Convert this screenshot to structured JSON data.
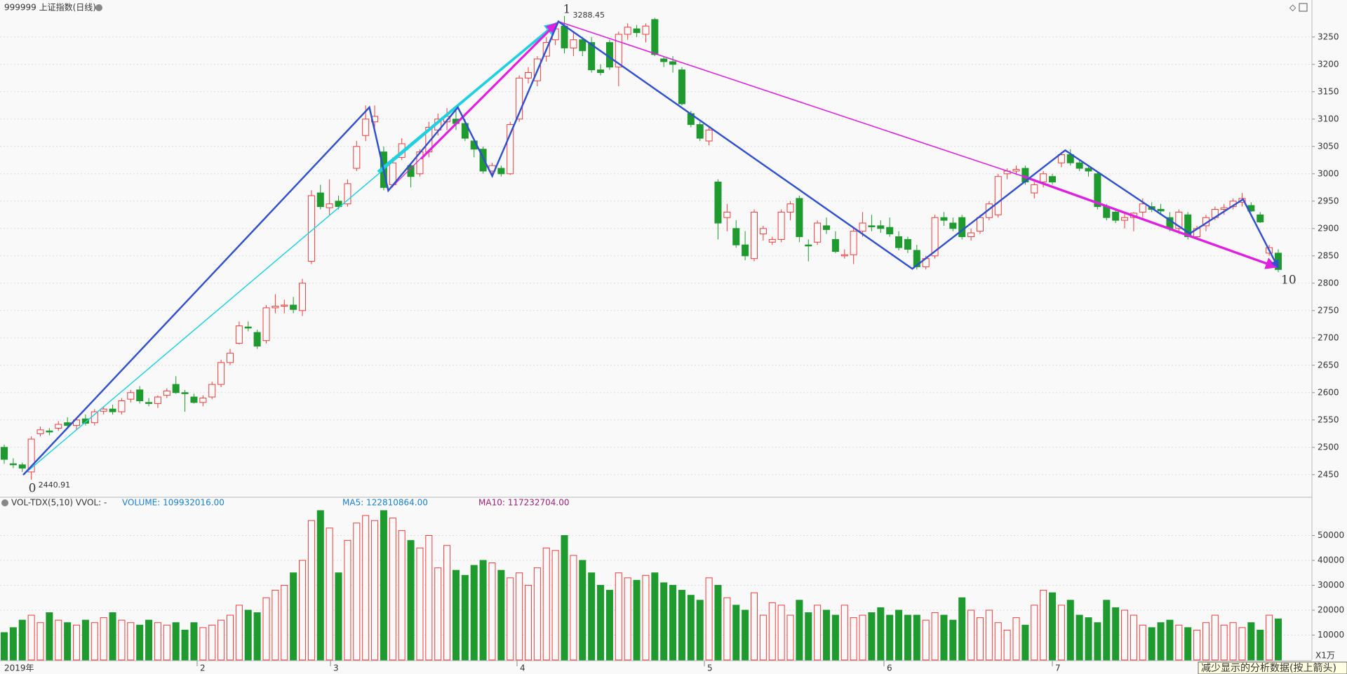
{
  "chart_data": {
    "type": "candlestick",
    "title": "999999 上证指数(日线)",
    "ylim": [
      2410,
      3310
    ],
    "yticks": [
      2450,
      2500,
      2550,
      2600,
      2650,
      2700,
      2750,
      2800,
      2850,
      2900,
      2950,
      3000,
      3050,
      3100,
      3150,
      3200,
      3250
    ],
    "up_color": "#f03c3c",
    "down_color": "#1f9a2e",
    "grid": true,
    "wave_labels": [
      "0",
      "1",
      "10"
    ],
    "month_labels": [
      "2019年",
      "2",
      "3",
      "4",
      "5",
      "6",
      "7"
    ],
    "hint": "减少显示的分析数据(按上箭头)",
    "candles": [
      [
        2500,
        2505,
        2470,
        2478
      ],
      [
        2470,
        2480,
        2462,
        2468
      ],
      [
        2468,
        2472,
        2455,
        2462
      ],
      [
        2455,
        2520,
        2440.91,
        2515
      ],
      [
        2525,
        2538,
        2520,
        2532
      ],
      [
        2530,
        2535,
        2522,
        2528
      ],
      [
        2535,
        2548,
        2530,
        2542
      ],
      [
        2545,
        2555,
        2535,
        2540
      ],
      [
        2540,
        2555,
        2532,
        2550
      ],
      [
        2552,
        2560,
        2540,
        2544
      ],
      [
        2545,
        2570,
        2540,
        2565
      ],
      [
        2566,
        2575,
        2560,
        2570
      ],
      [
        2570,
        2578,
        2560,
        2565
      ],
      [
        2565,
        2590,
        2560,
        2585
      ],
      [
        2588,
        2605,
        2582,
        2600
      ],
      [
        2605,
        2612,
        2580,
        2585
      ],
      [
        2582,
        2590,
        2575,
        2580
      ],
      [
        2580,
        2595,
        2572,
        2592
      ],
      [
        2595,
        2608,
        2590,
        2603
      ],
      [
        2615,
        2630,
        2598,
        2600
      ],
      [
        2600,
        2605,
        2565,
        2598
      ],
      [
        2592,
        2598,
        2580,
        2582
      ],
      [
        2582,
        2595,
        2575,
        2590
      ],
      [
        2592,
        2620,
        2588,
        2615
      ],
      [
        2615,
        2660,
        2610,
        2655
      ],
      [
        2655,
        2680,
        2650,
        2672
      ],
      [
        2690,
        2730,
        2688,
        2722
      ],
      [
        2720,
        2730,
        2712,
        2718
      ],
      [
        2710,
        2715,
        2680,
        2685
      ],
      [
        2695,
        2760,
        2690,
        2755
      ],
      [
        2755,
        2780,
        2745,
        2758
      ],
      [
        2758,
        2770,
        2745,
        2760
      ],
      [
        2760,
        2775,
        2745,
        2752
      ],
      [
        2750,
        2808,
        2740,
        2800
      ],
      [
        2840,
        2970,
        2835,
        2960
      ],
      [
        2965,
        2980,
        2935,
        2940
      ],
      [
        2938,
        2990,
        2925,
        2945
      ],
      [
        2950,
        2960,
        2935,
        2940
      ],
      [
        2945,
        2990,
        2940,
        2982
      ],
      [
        3010,
        3060,
        3005,
        3050
      ],
      [
        3070,
        3125,
        3060,
        3100
      ],
      [
        3095,
        3125,
        3085,
        3105
      ],
      [
        3040,
        3050,
        2970,
        2975
      ],
      [
        2980,
        3030,
        2975,
        3020
      ],
      [
        3030,
        3065,
        3025,
        3055
      ],
      [
        3015,
        3020,
        2975,
        2995
      ],
      [
        3000,
        3045,
        2995,
        3040
      ],
      [
        3040,
        3095,
        3030,
        3085
      ],
      [
        3080,
        3110,
        3070,
        3100
      ],
      [
        3095,
        3120,
        3080,
        3105
      ],
      [
        3100,
        3115,
        3080,
        3092
      ],
      [
        3092,
        3100,
        3060,
        3065
      ],
      [
        3060,
        3065,
        3030,
        3045
      ],
      [
        3045,
        3050,
        3000,
        3005
      ],
      [
        3005,
        3020,
        2995,
        3015
      ],
      [
        3010,
        3015,
        2995,
        3000
      ],
      [
        3000,
        3095,
        2998,
        3090
      ],
      [
        3100,
        3180,
        3095,
        3175
      ],
      [
        3175,
        3195,
        3165,
        3185
      ],
      [
        3170,
        3215,
        3160,
        3210
      ],
      [
        3215,
        3250,
        3205,
        3240
      ],
      [
        3245,
        3275,
        3235,
        3265
      ],
      [
        3270,
        3288.45,
        3220,
        3230
      ],
      [
        3230,
        3260,
        3215,
        3245
      ],
      [
        3245,
        3250,
        3215,
        3225
      ],
      [
        3240,
        3250,
        3185,
        3190
      ],
      [
        3190,
        3200,
        3180,
        3185
      ],
      [
        3240,
        3245,
        3190,
        3195
      ],
      [
        3195,
        3260,
        3160,
        3255
      ],
      [
        3255,
        3275,
        3245,
        3268
      ],
      [
        3265,
        3272,
        3250,
        3258
      ],
      [
        3255,
        3275,
        3240,
        3270
      ],
      [
        3282,
        3285,
        3215,
        3218
      ],
      [
        3210,
        3215,
        3195,
        3205
      ],
      [
        3205,
        3215,
        3185,
        3200
      ],
      [
        3190,
        3195,
        3125,
        3128
      ],
      [
        3110,
        3115,
        3085,
        3090
      ],
      [
        3090,
        3095,
        3060,
        3065
      ],
      [
        3060,
        3085,
        3052,
        3080
      ],
      [
        2985,
        2990,
        2880,
        2910
      ],
      [
        2920,
        2945,
        2895,
        2930
      ],
      [
        2900,
        2915,
        2865,
        2870
      ],
      [
        2870,
        2895,
        2842,
        2850
      ],
      [
        2845,
        2935,
        2840,
        2930
      ],
      [
        2890,
        2905,
        2878,
        2900
      ],
      [
        2875,
        2885,
        2870,
        2880
      ],
      [
        2880,
        2935,
        2875,
        2930
      ],
      [
        2930,
        2950,
        2915,
        2945
      ],
      [
        2955,
        2960,
        2875,
        2885
      ],
      [
        2870,
        2880,
        2840,
        2868
      ],
      [
        2875,
        2915,
        2870,
        2910
      ],
      [
        2905,
        2920,
        2890,
        2898
      ],
      [
        2880,
        2895,
        2855,
        2858
      ],
      [
        2850,
        2862,
        2845,
        2852
      ],
      [
        2852,
        2900,
        2835,
        2895
      ],
      [
        2895,
        2930,
        2885,
        2910
      ],
      [
        2905,
        2925,
        2895,
        2903
      ],
      [
        2905,
        2915,
        2892,
        2900
      ],
      [
        2902,
        2920,
        2885,
        2890
      ],
      [
        2885,
        2895,
        2860,
        2865
      ],
      [
        2880,
        2885,
        2855,
        2862
      ],
      [
        2860,
        2870,
        2825,
        2830
      ],
      [
        2830,
        2850,
        2825,
        2845
      ],
      [
        2850,
        2925,
        2845,
        2920
      ],
      [
        2920,
        2930,
        2905,
        2915
      ],
      [
        2910,
        2920,
        2895,
        2900
      ],
      [
        2920,
        2925,
        2880,
        2885
      ],
      [
        2885,
        2900,
        2878,
        2892
      ],
      [
        2895,
        2925,
        2890,
        2920
      ],
      [
        2920,
        2950,
        2915,
        2945
      ],
      [
        2925,
        3000,
        2920,
        2995
      ],
      [
        3000,
        3010,
        2990,
        3005
      ],
      [
        3005,
        3015,
        2998,
        3008
      ],
      [
        3010,
        3015,
        2980,
        2985
      ],
      [
        2965,
        2985,
        2955,
        2980
      ],
      [
        2985,
        3005,
        2975,
        3000
      ],
      [
        2995,
        3000,
        2980,
        2985
      ],
      [
        3020,
        3040,
        3012,
        3035
      ],
      [
        3035,
        3045,
        3015,
        3020
      ],
      [
        3020,
        3025,
        3005,
        3010
      ],
      [
        3010,
        3015,
        2995,
        3005
      ],
      [
        3000,
        3005,
        2935,
        2940
      ],
      [
        2940,
        2945,
        2915,
        2920
      ],
      [
        2930,
        2935,
        2910,
        2915
      ],
      [
        2915,
        2930,
        2900,
        2920
      ],
      [
        2920,
        2930,
        2895,
        2928
      ],
      [
        2930,
        2955,
        2920,
        2945
      ],
      [
        2940,
        2948,
        2930,
        2935
      ],
      [
        2935,
        2945,
        2925,
        2932
      ],
      [
        2920,
        2930,
        2895,
        2900
      ],
      [
        2900,
        2935,
        2890,
        2930
      ],
      [
        2925,
        2930,
        2880,
        2885
      ],
      [
        2885,
        2905,
        2880,
        2900
      ],
      [
        2905,
        2925,
        2895,
        2920
      ],
      [
        2920,
        2940,
        2915,
        2935
      ],
      [
        2935,
        2945,
        2925,
        2938
      ],
      [
        2940,
        2955,
        2935,
        2950
      ],
      [
        2948,
        2965,
        2940,
        2955
      ],
      [
        2942,
        2948,
        2930,
        2932
      ],
      [
        2925,
        2930,
        2910,
        2912
      ],
      [
        2855,
        2870,
        2850,
        2865
      ],
      [
        2855,
        2862,
        2820,
        2825
      ]
    ],
    "volume": {
      "indicator": "VOL-TDX(5,10) VVOL: -",
      "volume_label": "VOLUME: 109932016.00",
      "ma5_label": "MA5: 122810864.00",
      "ma10_label": "MA10: 117232704.00",
      "unit": "X1万",
      "ylim": [
        0,
        60000
      ],
      "yticks": [
        10000,
        20000,
        30000,
        40000,
        50000
      ],
      "values": [
        11000,
        13000,
        16000,
        18000,
        15000,
        19000,
        16000,
        15000,
        14000,
        16000,
        15000,
        17000,
        19000,
        16000,
        15000,
        14000,
        16000,
        15000,
        14000,
        15000,
        12000,
        15000,
        13000,
        14000,
        16000,
        18000,
        22000,
        20000,
        19000,
        25000,
        28000,
        30000,
        35000,
        40000,
        56000,
        60000,
        53000,
        35000,
        48000,
        55000,
        58000,
        56000,
        60000,
        57000,
        52000,
        48000,
        45000,
        50000,
        37000,
        46000,
        36000,
        34000,
        38000,
        40000,
        39000,
        36000,
        33000,
        35000,
        30000,
        37000,
        45000,
        44000,
        50000,
        42000,
        40000,
        35000,
        30000,
        28000,
        35000,
        33000,
        32000,
        34000,
        35000,
        31000,
        30000,
        28000,
        26000,
        24000,
        33000,
        30000,
        25000,
        22000,
        20000,
        27000,
        18000,
        23000,
        22000,
        18000,
        24000,
        19000,
        22000,
        20000,
        18000,
        22000,
        17000,
        18000,
        19000,
        21000,
        18000,
        20000,
        18000,
        18000,
        16000,
        19000,
        18000,
        16000,
        25000,
        20000,
        17000,
        20000,
        15000,
        12000,
        17000,
        14000,
        22000,
        28000,
        27000,
        22000,
        24000,
        18000,
        17000,
        15000,
        24000,
        21000,
        20000,
        18000,
        14000,
        13000,
        15000,
        16000,
        14000,
        13000,
        12000,
        15000,
        18000,
        14000,
        15000,
        13000,
        15000,
        12000,
        18000,
        16500
      ]
    }
  }
}
